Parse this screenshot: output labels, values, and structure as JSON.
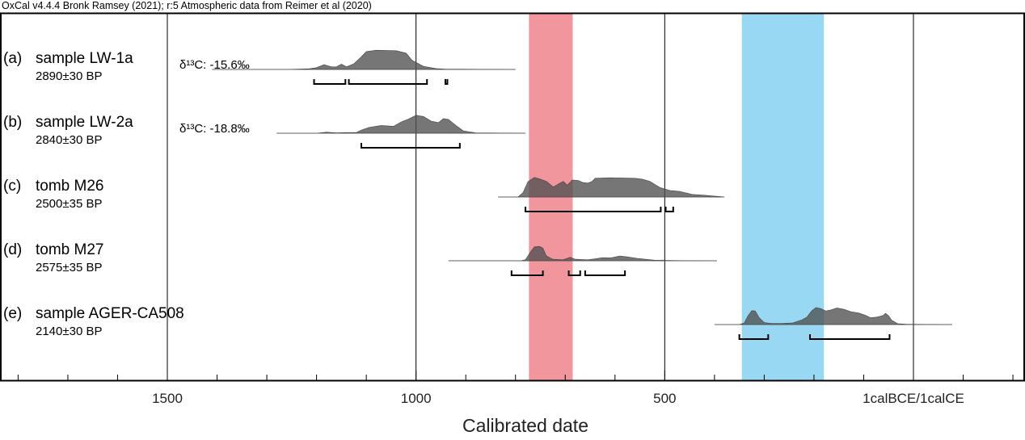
{
  "header": "OxCal v4.4.4 Bronk Ramsey (2021); r:5 Atmospheric data from Reimer et al (2020)",
  "chart_data": {
    "type": "area",
    "xlabel": "Calibrated date",
    "xlim": [
      1830,
      250
    ],
    "x_ticks": [
      {
        "value": 1500,
        "label": "1500"
      },
      {
        "value": 1000,
        "label": "1000"
      },
      {
        "value": 500,
        "label": "500"
      },
      {
        "value": 0,
        "label": "1calBCE/1calCE"
      }
    ],
    "grid": "vertical lines at major ticks",
    "shaded_bands": [
      {
        "x": [
          773,
          685
        ],
        "color": "#f2969e"
      },
      {
        "x": [
          345,
          180
        ],
        "color": "#98d8f2"
      }
    ],
    "series": [
      {
        "tag": "(a)",
        "name": "sample LW-1a",
        "date": "2890±30 BP",
        "note": "δ¹³C: -15.6‰",
        "range": [
          1410,
          800
        ],
        "points": [
          [
            1410,
            0
          ],
          [
            1260,
            0
          ],
          [
            1215,
            0.03
          ],
          [
            1200,
            0.08
          ],
          [
            1185,
            0.22
          ],
          [
            1170,
            0.12
          ],
          [
            1160,
            0.12
          ],
          [
            1150,
            0.24
          ],
          [
            1140,
            0.12
          ],
          [
            1125,
            0.26
          ],
          [
            1110,
            0.58
          ],
          [
            1100,
            0.82
          ],
          [
            1080,
            0.88
          ],
          [
            1040,
            0.86
          ],
          [
            1020,
            0.75
          ],
          [
            1008,
            0.42
          ],
          [
            985,
            0.14
          ],
          [
            960,
            0.04
          ],
          [
            940,
            0.01
          ],
          [
            910,
            0.01
          ],
          [
            800,
            0
          ]
        ],
        "intervals": [
          [
            1205,
            1142
          ],
          [
            1135,
            978
          ],
          [
            941,
            937
          ]
        ]
      },
      {
        "tag": "(b)",
        "name": "sample LW-2a",
        "date": "2840±30 BP",
        "note": "δ¹³C: -18.8‰",
        "range": [
          1280,
          780
        ],
        "points": [
          [
            1280,
            0
          ],
          [
            1200,
            0
          ],
          [
            1180,
            0.05
          ],
          [
            1160,
            0.02
          ],
          [
            1140,
            0.03
          ],
          [
            1120,
            0.03
          ],
          [
            1110,
            0.15
          ],
          [
            1095,
            0.28
          ],
          [
            1070,
            0.38
          ],
          [
            1045,
            0.34
          ],
          [
            1030,
            0.55
          ],
          [
            1015,
            0.7
          ],
          [
            1000,
            0.88
          ],
          [
            985,
            0.82
          ],
          [
            970,
            0.6
          ],
          [
            955,
            0.52
          ],
          [
            945,
            0.72
          ],
          [
            935,
            0.68
          ],
          [
            920,
            0.38
          ],
          [
            905,
            0.12
          ],
          [
            880,
            0.02
          ],
          [
            780,
            0
          ]
        ],
        "intervals": [
          [
            1110,
            912
          ]
        ]
      },
      {
        "tag": "(c)",
        "name": "tomb M26",
        "date": "2500±35 BP",
        "note": "",
        "range": [
          835,
          380
        ],
        "points": [
          [
            835,
            0
          ],
          [
            795,
            0
          ],
          [
            785,
            0.2
          ],
          [
            775,
            0.7
          ],
          [
            762,
            0.9
          ],
          [
            750,
            0.82
          ],
          [
            738,
            0.72
          ],
          [
            724,
            0.46
          ],
          [
            712,
            0.62
          ],
          [
            704,
            0.72
          ],
          [
            696,
            0.54
          ],
          [
            686,
            0.78
          ],
          [
            674,
            0.76
          ],
          [
            664,
            0.66
          ],
          [
            654,
            0.64
          ],
          [
            646,
            0.72
          ],
          [
            640,
            0.86
          ],
          [
            610,
            0.88
          ],
          [
            560,
            0.86
          ],
          [
            545,
            0.82
          ],
          [
            530,
            0.72
          ],
          [
            510,
            0.44
          ],
          [
            490,
            0.3
          ],
          [
            470,
            0.26
          ],
          [
            445,
            0.12
          ],
          [
            420,
            0.08
          ],
          [
            400,
            0.04
          ],
          [
            380,
            0
          ]
        ],
        "intervals": [
          [
            780,
            508
          ],
          [
            498,
            483
          ]
        ]
      },
      {
        "tag": "(d)",
        "name": "tomb M27",
        "date": "2575±35 BP",
        "note": "",
        "range": [
          935,
          395
        ],
        "points": [
          [
            935,
            0
          ],
          [
            790,
            0
          ],
          [
            780,
            0.05
          ],
          [
            770,
            0.45
          ],
          [
            762,
            0.72
          ],
          [
            752,
            0.74
          ],
          [
            745,
            0.65
          ],
          [
            738,
            0.25
          ],
          [
            725,
            0.08
          ],
          [
            705,
            0.05
          ],
          [
            690,
            0.18
          ],
          [
            680,
            0.08
          ],
          [
            655,
            0.05
          ],
          [
            640,
            0.1
          ],
          [
            625,
            0.16
          ],
          [
            608,
            0.15
          ],
          [
            590,
            0.25
          ],
          [
            575,
            0.2
          ],
          [
            555,
            0.12
          ],
          [
            520,
            0.03
          ],
          [
            470,
            0.01
          ],
          [
            395,
            0
          ]
        ],
        "intervals": [
          [
            808,
            745
          ],
          [
            693,
            670
          ],
          [
            660,
            580
          ]
        ]
      },
      {
        "tag": "(e)",
        "name": "sample AGER-CA508",
        "date": "2140±30 BP",
        "note": "",
        "range": [
          400,
          -78
        ],
        "points": [
          [
            400,
            0
          ],
          [
            350,
            0
          ],
          [
            340,
            0.1
          ],
          [
            333,
            0.5
          ],
          [
            325,
            0.82
          ],
          [
            318,
            0.8
          ],
          [
            310,
            0.4
          ],
          [
            300,
            0.12
          ],
          [
            285,
            0.06
          ],
          [
            265,
            0.06
          ],
          [
            242,
            0.1
          ],
          [
            224,
            0.28
          ],
          [
            214,
            0.44
          ],
          [
            205,
            0.8
          ],
          [
            196,
            1.0
          ],
          [
            186,
            0.94
          ],
          [
            176,
            0.8
          ],
          [
            166,
            0.86
          ],
          [
            154,
            0.98
          ],
          [
            140,
            0.9
          ],
          [
            126,
            0.76
          ],
          [
            110,
            0.68
          ],
          [
            96,
            0.54
          ],
          [
            86,
            0.4
          ],
          [
            74,
            0.44
          ],
          [
            62,
            0.52
          ],
          [
            56,
            0.66
          ],
          [
            50,
            0.52
          ],
          [
            44,
            0.26
          ],
          [
            32,
            0.05
          ],
          [
            15,
            0.02
          ],
          [
            -78,
            0
          ]
        ],
        "intervals": [
          [
            350,
            292
          ],
          [
            208,
            48
          ]
        ]
      }
    ]
  }
}
